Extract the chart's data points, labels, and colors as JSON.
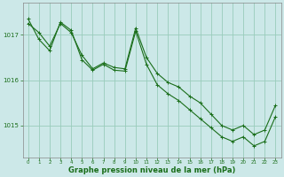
{
  "title": "Graphe pression niveau de la mer (hPa)",
  "background_color": "#cce8e8",
  "grid_color": "#99ccbb",
  "line_color": "#1a6e1a",
  "xlim": [
    -0.5,
    23.5
  ],
  "ylim": [
    1014.3,
    1017.7
  ],
  "yticks": [
    1015,
    1016,
    1017
  ],
  "xticks": [
    0,
    1,
    2,
    3,
    4,
    5,
    6,
    7,
    8,
    9,
    10,
    11,
    12,
    13,
    14,
    15,
    16,
    17,
    18,
    19,
    20,
    21,
    22,
    23
  ],
  "series1_x": [
    0,
    1,
    2,
    3,
    4,
    5,
    6,
    7,
    8,
    9,
    10,
    11,
    12,
    13,
    14,
    15,
    16,
    17,
    18,
    19,
    20,
    21,
    22,
    23
  ],
  "series1_y": [
    1017.25,
    1017.05,
    1016.75,
    1017.25,
    1017.05,
    1016.55,
    1016.25,
    1016.38,
    1016.28,
    1016.25,
    1017.15,
    1016.5,
    1016.15,
    1015.95,
    1015.85,
    1015.65,
    1015.5,
    1015.25,
    1015.0,
    1014.9,
    1015.0,
    1014.8,
    1014.9,
    1015.45
  ],
  "series2_x": [
    0,
    1,
    2,
    3,
    4,
    5,
    6,
    7,
    8,
    9,
    10,
    11,
    12,
    13,
    14,
    15,
    16,
    17,
    18,
    19,
    20,
    21,
    22,
    23
  ],
  "series2_y": [
    1017.35,
    1016.9,
    1016.65,
    1017.28,
    1017.1,
    1016.45,
    1016.22,
    1016.35,
    1016.22,
    1016.2,
    1017.08,
    1016.35,
    1015.9,
    1015.7,
    1015.55,
    1015.35,
    1015.15,
    1014.95,
    1014.75,
    1014.65,
    1014.75,
    1014.55,
    1014.65,
    1015.2
  ],
  "ylabel_fontsize": 5.5,
  "xlabel_fontsize": 5.5,
  "title_fontsize": 6.0
}
